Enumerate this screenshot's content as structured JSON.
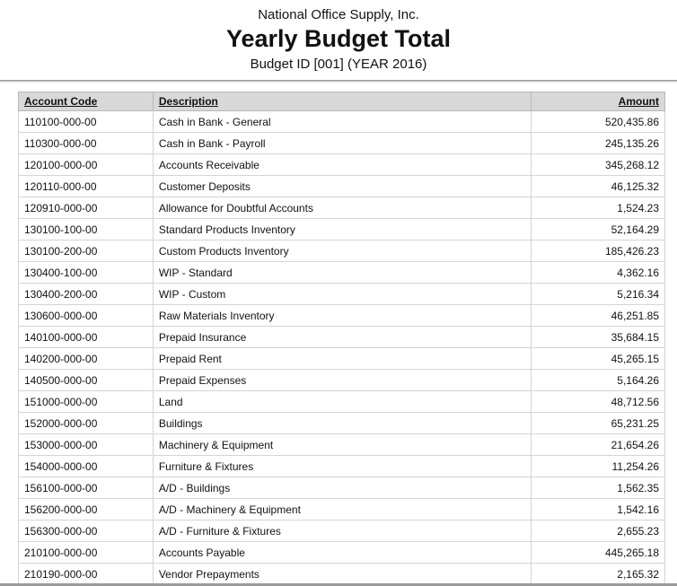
{
  "report": {
    "company": "National Office Supply, Inc.",
    "title": "Yearly Budget Total",
    "subtitle": "Budget ID [001] (YEAR 2016)"
  },
  "table": {
    "columns": [
      "Account Code",
      "Description",
      "Amount"
    ],
    "rows": [
      {
        "account_code": "110100-000-00",
        "description": "Cash in Bank - General",
        "amount": "520,435.86"
      },
      {
        "account_code": "110300-000-00",
        "description": "Cash in Bank - Payroll",
        "amount": "245,135.26"
      },
      {
        "account_code": "120100-000-00",
        "description": "Accounts Receivable",
        "amount": "345,268.12"
      },
      {
        "account_code": "120110-000-00",
        "description": "Customer Deposits",
        "amount": "46,125.32"
      },
      {
        "account_code": "120910-000-00",
        "description": "Allowance for Doubtful Accounts",
        "amount": "1,524.23"
      },
      {
        "account_code": "130100-100-00",
        "description": "Standard Products Inventory",
        "amount": "52,164.29"
      },
      {
        "account_code": "130100-200-00",
        "description": "Custom Products Inventory",
        "amount": "185,426.23"
      },
      {
        "account_code": "130400-100-00",
        "description": "WIP - Standard",
        "amount": "4,362.16"
      },
      {
        "account_code": "130400-200-00",
        "description": "WIP - Custom",
        "amount": "5,216.34"
      },
      {
        "account_code": "130600-000-00",
        "description": "Raw Materials Inventory",
        "amount": "46,251.85"
      },
      {
        "account_code": "140100-000-00",
        "description": "Prepaid Insurance",
        "amount": "35,684.15"
      },
      {
        "account_code": "140200-000-00",
        "description": "Prepaid Rent",
        "amount": "45,265.15"
      },
      {
        "account_code": "140500-000-00",
        "description": "Prepaid Expenses",
        "amount": "5,164.26"
      },
      {
        "account_code": "151000-000-00",
        "description": "Land",
        "amount": "48,712.56"
      },
      {
        "account_code": "152000-000-00",
        "description": "Buildings",
        "amount": "65,231.25"
      },
      {
        "account_code": "153000-000-00",
        "description": "Machinery & Equipment",
        "amount": "21,654.26"
      },
      {
        "account_code": "154000-000-00",
        "description": "Furniture & Fixtures",
        "amount": "11,254.26"
      },
      {
        "account_code": "156100-000-00",
        "description": "A/D - Buildings",
        "amount": "1,562.35"
      },
      {
        "account_code": "156200-000-00",
        "description": "A/D - Machinery & Equipment",
        "amount": "1,542.16"
      },
      {
        "account_code": "156300-000-00",
        "description": "A/D - Furniture & Fixtures",
        "amount": "2,655.23"
      },
      {
        "account_code": "210100-000-00",
        "description": "Accounts Payable",
        "amount": "445,265.18"
      },
      {
        "account_code": "210190-000-00",
        "description": "Vendor Prepayments",
        "amount": "2,165.32"
      }
    ]
  },
  "colors": {
    "header_bg": "#d8d8d8",
    "row_border": "#d4d4d4",
    "table_border": "#b8b8b8",
    "divider": "#cccccc"
  }
}
